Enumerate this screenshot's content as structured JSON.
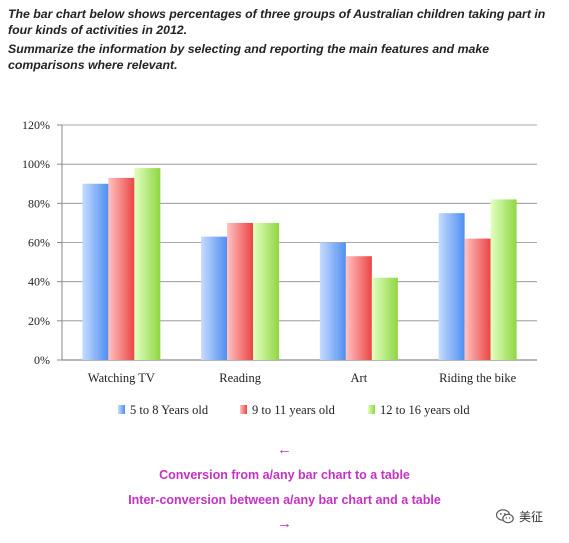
{
  "task": {
    "line1": "The bar chart below shows percentages of three groups of Australian children taking part in four kinds of activities in 2012.",
    "line2": "Summarize the information by selecting and reporting the main features and make comparisons where relevant."
  },
  "chart_data": {
    "type": "bar",
    "categories": [
      "Watching TV",
      "Reading",
      "Art",
      "Riding the bike"
    ],
    "series": [
      {
        "name": "5 to 8 Years old",
        "values": [
          90,
          63,
          60,
          75
        ]
      },
      {
        "name": "9 to 11 years old",
        "values": [
          93,
          70,
          53,
          62
        ]
      },
      {
        "name": "12 to 16 years old",
        "values": [
          98,
          70,
          42,
          82
        ]
      }
    ],
    "ylim": [
      0,
      120
    ],
    "yticks": [
      "0%",
      "20%",
      "40%",
      "60%",
      "80%",
      "100%",
      "120%"
    ],
    "grid": true,
    "legend_position": "bottom",
    "colors": {
      "5 to 8 Years old": {
        "light": "#c6dbff",
        "dark": "#4f8ff0"
      },
      "9 to 11 years old": {
        "light": "#ffc2c2",
        "dark": "#ec4444"
      },
      "12 to 16 years old": {
        "light": "#e2ffc0",
        "dark": "#8fd642"
      }
    }
  },
  "notes": {
    "arrow_left": "←",
    "line1": "Conversion from a/any bar chart to a table",
    "line2": "Inter-conversion between a/any bar chart and a table",
    "arrow_right": "→",
    "color": "#c530c5"
  },
  "wechat": {
    "name": "美征",
    "icon": "wechat-icon"
  }
}
